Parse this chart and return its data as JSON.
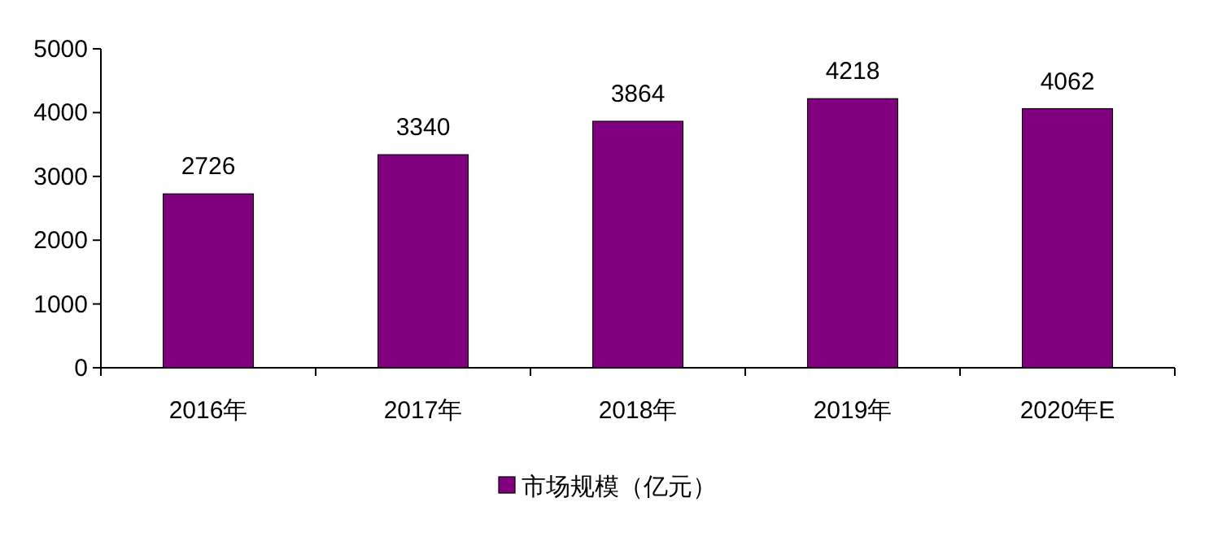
{
  "chart_data": {
    "type": "bar",
    "categories": [
      "2016年",
      "2017年",
      "2018年",
      "2019年",
      "2020年E"
    ],
    "series": [
      {
        "name": "市场规模（亿元）",
        "color": "#800080",
        "values": [
          2726,
          3340,
          3864,
          4218,
          4062
        ]
      }
    ],
    "ylim": [
      0,
      5000
    ],
    "yticks": [
      0,
      1000,
      2000,
      3000,
      4000,
      5000
    ],
    "data_labels": true,
    "legend": "bottom",
    "grid": false
  }
}
